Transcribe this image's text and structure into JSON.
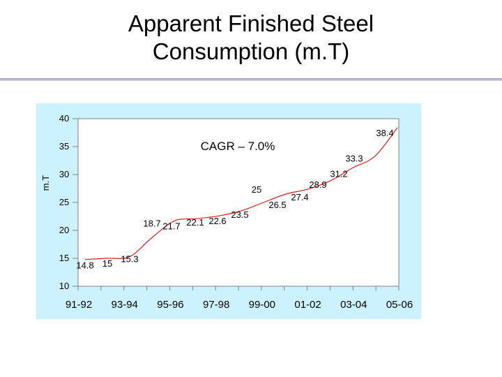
{
  "slide": {
    "title_line1": "Apparent Finished Steel",
    "title_line2": "Consumption (m.T)"
  },
  "chart_data": {
    "type": "line",
    "ylabel": "m.T",
    "annotation": "CAGR – 7.0%",
    "ylim": [
      10,
      40
    ],
    "yticks": [
      10,
      15,
      20,
      25,
      30,
      35,
      40
    ],
    "xtick_labels": [
      "91-92",
      "93-94",
      "95-96",
      "97-98",
      "99-00",
      "01-02",
      "03-04",
      "05-06"
    ],
    "grid": false,
    "colors": {
      "line": "#d62020",
      "plot_bg": "#ffffff",
      "panel_bg": "#ccf2ff"
    },
    "series": [
      {
        "values": [
          14.8,
          15,
          15.3,
          18.7,
          21.7,
          22.1,
          22.6,
          23.5,
          25,
          26.5,
          27.4,
          28.9,
          31.2,
          33.3,
          38.4
        ],
        "labels": [
          "14.8",
          "15",
          "15.3",
          "18.7",
          "21.7",
          "22.1",
          "22.6",
          "23.5",
          "25",
          "26.5",
          "27.4",
          "28.9",
          "31.2",
          "33.3",
          "38.4"
        ]
      }
    ]
  }
}
